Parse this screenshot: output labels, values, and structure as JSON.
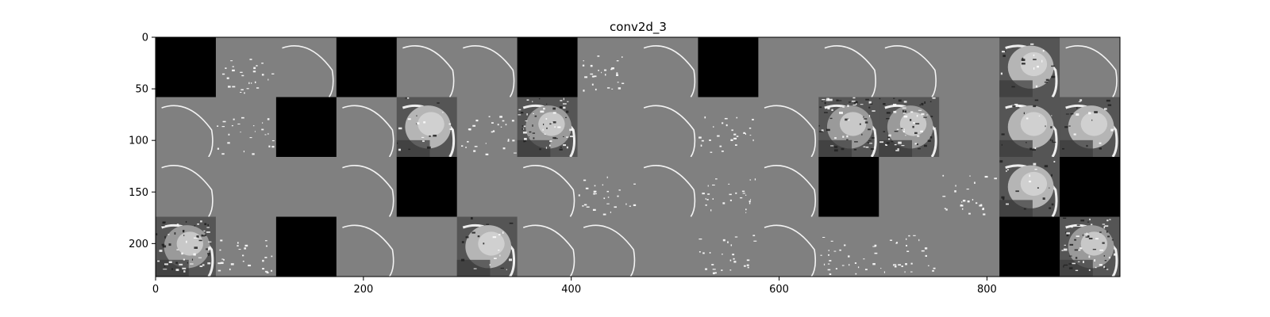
{
  "chart_data": {
    "type": "heatmap",
    "title": "conv2d_3",
    "colormap": "gray",
    "grid": false,
    "xlim": [
      0,
      928
    ],
    "ylim": [
      232,
      0
    ],
    "xticks": [
      0,
      200,
      400,
      600,
      800
    ],
    "yticks": [
      0,
      50,
      100,
      150,
      200
    ],
    "xtick_labels": [
      "0",
      "200",
      "400",
      "600",
      "800"
    ],
    "ytick_labels": [
      "0",
      "50",
      "100",
      "150",
      "200"
    ],
    "tile_size": 58,
    "rows": 4,
    "cols": 16,
    "tile_grid": [
      [
        "black",
        "sparse",
        "edge",
        "black",
        "edge",
        "edge",
        "black",
        "sparse",
        "edge",
        "black",
        "flat",
        "edge",
        "edge",
        "flat",
        "bright",
        "edge"
      ],
      [
        "edge",
        "sparse",
        "black",
        "edge",
        "bright",
        "sparse",
        "textured",
        "flat",
        "edge",
        "sparse",
        "edge",
        "textured",
        "textured",
        "flat",
        "bright",
        "bright"
      ],
      [
        "edge",
        "flat",
        "flat",
        "edge",
        "black",
        "flat",
        "edge",
        "sparse",
        "edge",
        "sparse",
        "edge",
        "black",
        "flat",
        "sparse",
        "bright",
        "black"
      ],
      [
        "textured",
        "sparse",
        "black",
        "edge",
        "flat",
        "bright",
        "edge",
        "edge",
        "flat",
        "sparse",
        "edge",
        "sparse",
        "sparse",
        "flat",
        "black",
        "textured"
      ]
    ]
  }
}
